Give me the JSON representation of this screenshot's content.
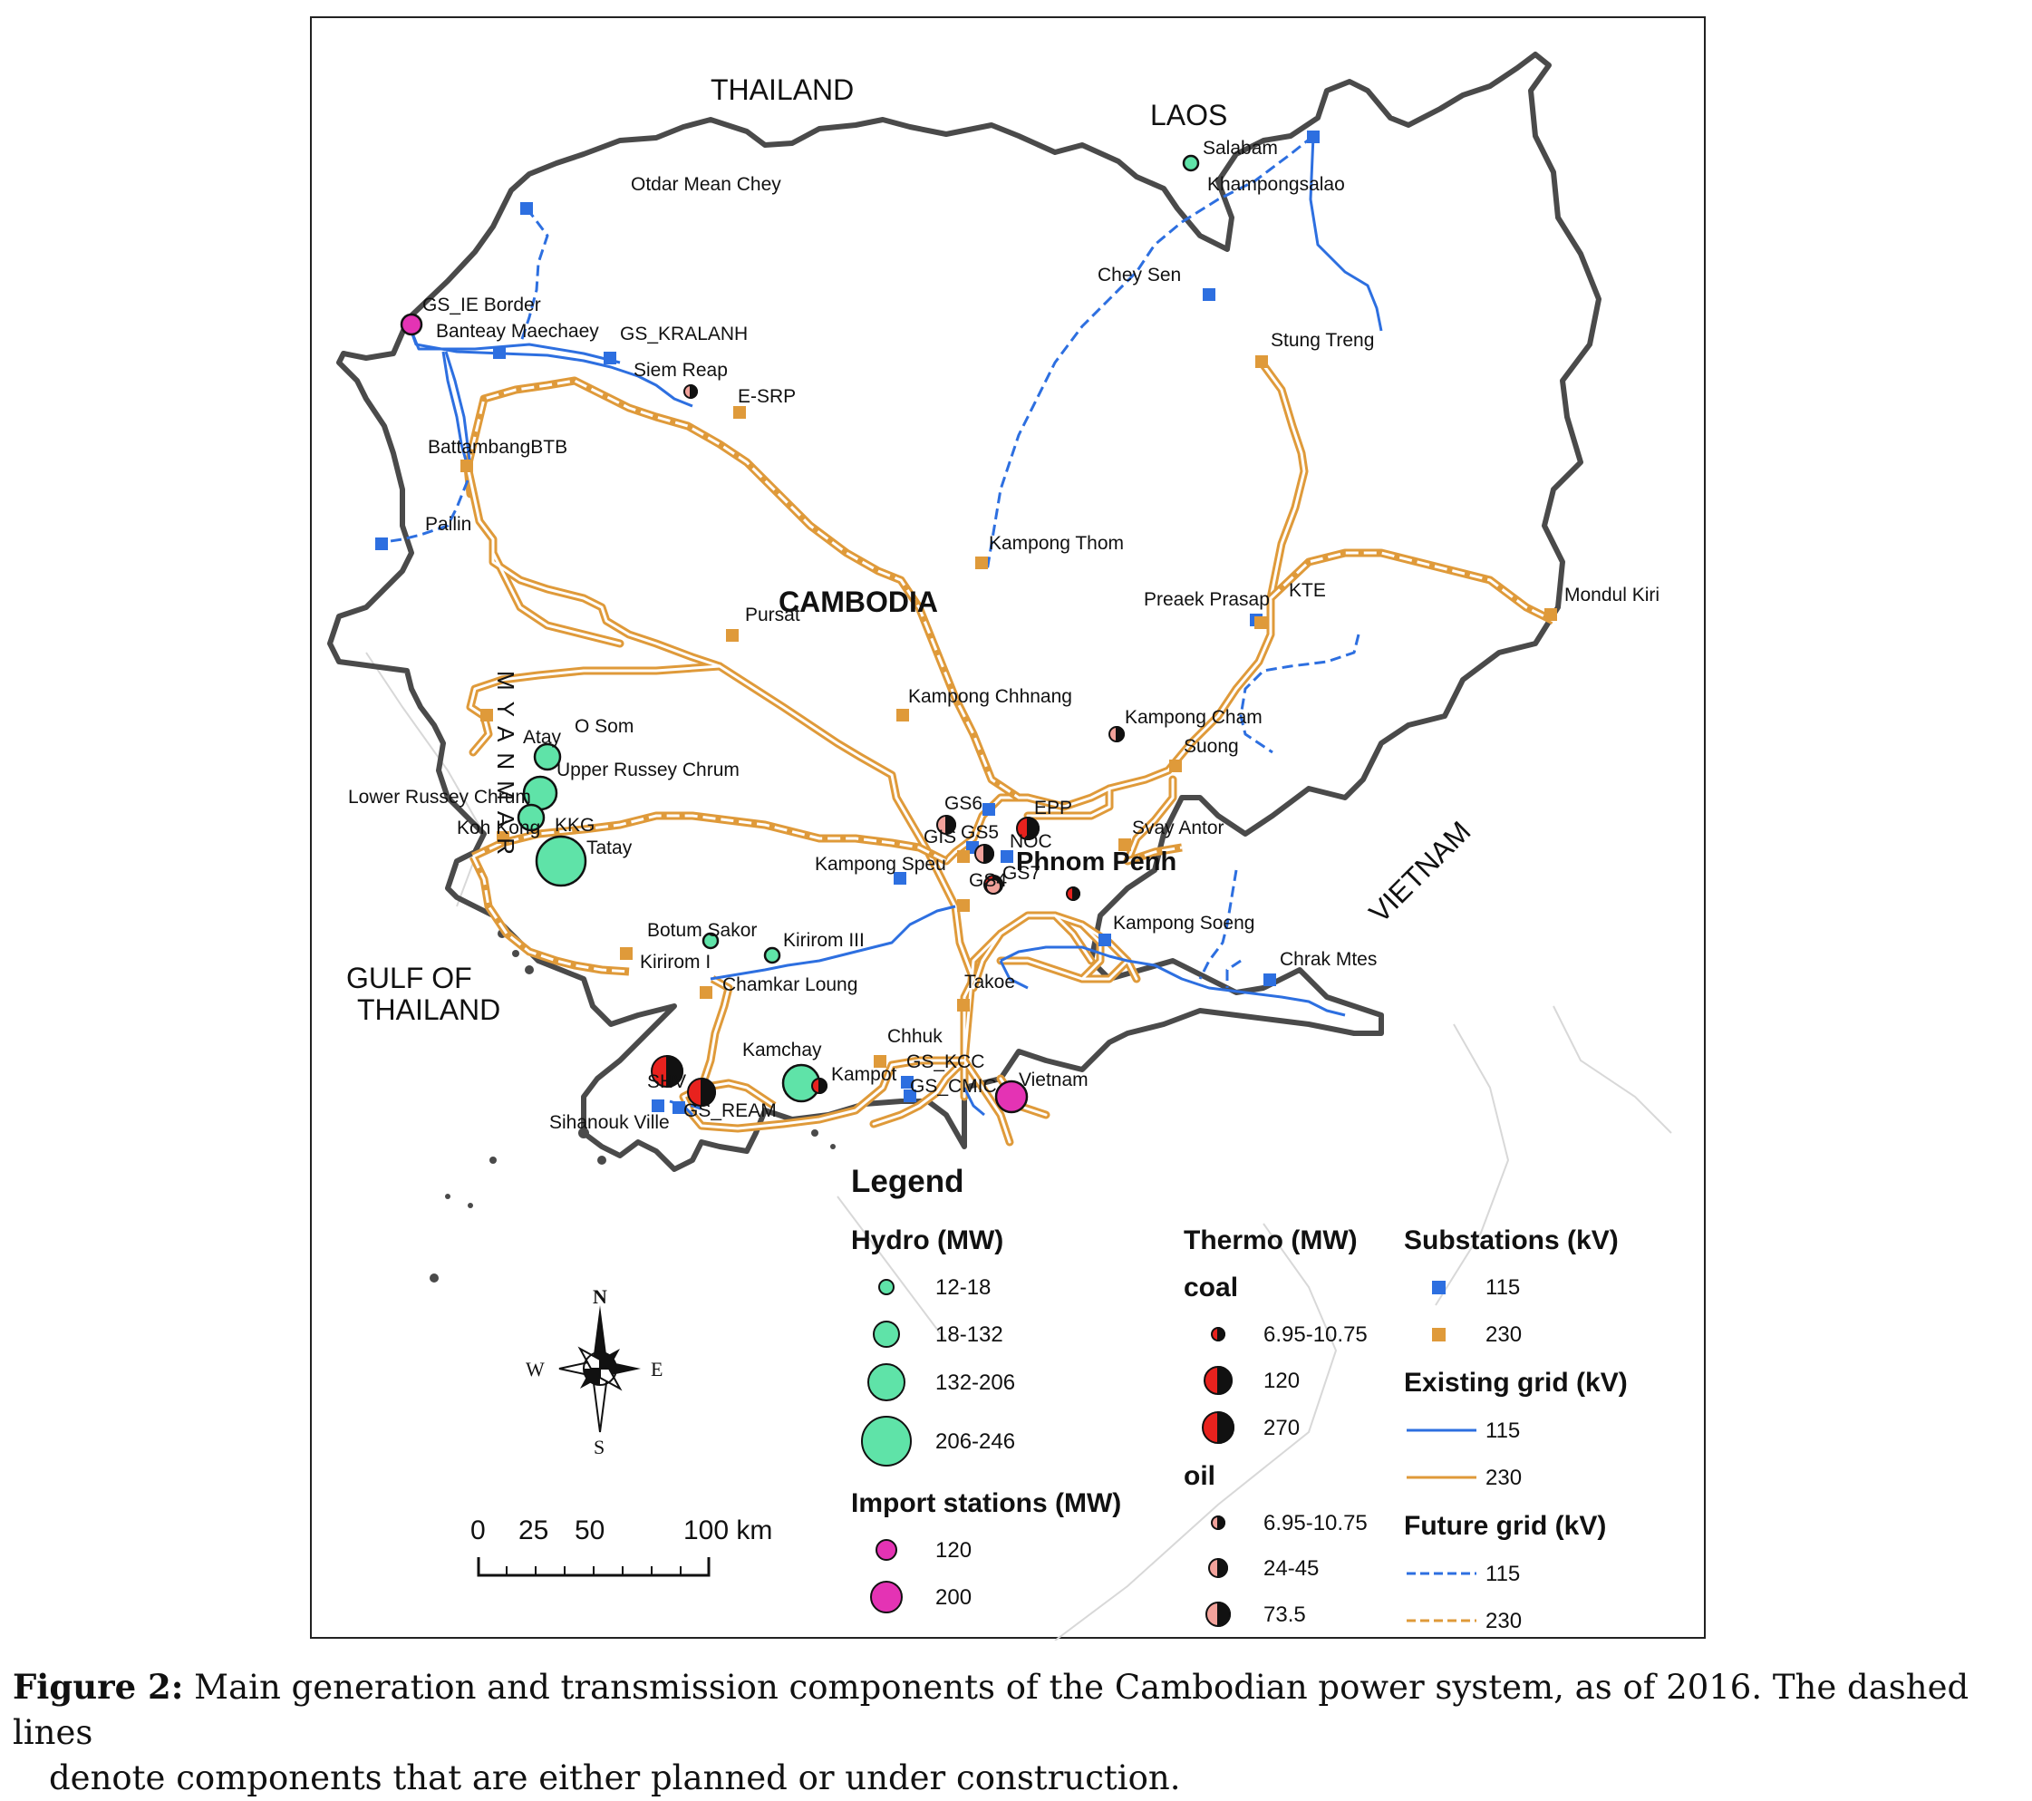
{
  "map": {
    "countries": {
      "thailand": "THAILAND",
      "laos": "LAOS",
      "cambodia": "CAMBODIA",
      "vietnam": "VIETNAM",
      "myanmar_vertical": "MYANMAR",
      "gulf_line1": "GULF   OF",
      "gulf_line2": "THAILAND"
    },
    "city_major": "Phnom Penh",
    "places": {
      "salabam": "Salabam",
      "khampongsalao": "Khampongsalao",
      "otdar": "Otdar Mean Chey",
      "chey_sen": "Chey Sen",
      "gs_ie_border": "GS_IE Border",
      "banteay": "Banteay Maechaey",
      "gs_kralanh": "GS_KRALANH",
      "stung_treng": "Stung Treng",
      "siem_reap": "Siem Reap",
      "e_srp": "E-SRP",
      "battambang": "BattambangBTB",
      "pailin": "Pailin",
      "kampong_thom": "Kampong Thom",
      "preaek_prasap": "Preaek Prasap",
      "kte": "KTE",
      "mondul_kiri": "Mondul Kiri",
      "pursat": "Pursat",
      "kampong_chhnang": "Kampong Chhnang",
      "kampong_cham": "Kampong Cham",
      "suong": "Suong",
      "atay": "Atay",
      "o_som": "O Som",
      "upper_russey": "Upper Russey Chrum",
      "lower_russey": "Lower Russey Chrum",
      "koh_kong": "Koh Kong",
      "kkg": "KKG",
      "tatay": "Tatay",
      "gs6": "GS6",
      "epp": "EPP",
      "gis": "GIS",
      "gs5": "GS5",
      "noc": "NOC",
      "svay_antor": "Svay Antor",
      "kampong_speu": "Kampong Speu",
      "gs4": "GS4",
      "gs7": "GS7",
      "kampong_soeng": "Kampong Soeng",
      "chrak_mtes": "Chrak Mtes",
      "botum_sakor": "Botum Sakor",
      "kirirom_iii": "Kirirom III",
      "kirirom_i": "Kirirom I",
      "chamkar_loung": "Chamkar Loung",
      "takoe": "Takoe",
      "kamchay": "Kamchay",
      "chhuk": "Chhuk",
      "gs_kcc": "GS_KCC",
      "kampot": "Kampot",
      "gs_cmic": "GS_CMIC",
      "vietnam_station": "Vietnam",
      "shv": "SHV",
      "sihanouk_ville": "Sihanouk Ville",
      "gs_ream": "GS_REAM"
    }
  },
  "compass": {
    "n": "N",
    "s": "S",
    "e": "E",
    "w": "W"
  },
  "scale_bar": {
    "t0": "0",
    "t1": "25",
    "t2": "50",
    "t3": "100 km"
  },
  "legend": {
    "title": "Legend",
    "hydro": {
      "heading": "Hydro (MW)",
      "items": [
        "12-18",
        "18-132",
        "132-206",
        "206-246"
      ]
    },
    "import": {
      "heading": "Import stations (MW)",
      "items": [
        "120",
        "200"
      ]
    },
    "thermo": {
      "heading": "Thermo (MW)",
      "coal_heading": "coal",
      "coal_items": [
        "6.95-10.75",
        "120",
        "270"
      ],
      "oil_heading": "oil",
      "oil_items": [
        "6.95-10.75",
        "24-45",
        "73.5"
      ]
    },
    "substations": {
      "heading": "Substations (kV)",
      "items": [
        "115",
        "230"
      ]
    },
    "existing_grid": {
      "heading": "Existing grid (kV)",
      "items": [
        "115",
        "230"
      ]
    },
    "future_grid": {
      "heading": "Future grid (kV)",
      "items": [
        "115",
        "230"
      ]
    }
  },
  "colors": {
    "hydro": "#5fe3a8",
    "import": "#e433b4",
    "coal": "#e8221e",
    "oil": "#f2a29b",
    "grid_115": "#2d6fe0",
    "grid_230": "#df9a3a",
    "border": "#444444"
  },
  "caption": {
    "label": "Figure 2:",
    "line1": " Main generation and transmission components of the Cambodian power system, as of 2016. The dashed lines",
    "line2": "denote components that are either planned or under construction."
  }
}
